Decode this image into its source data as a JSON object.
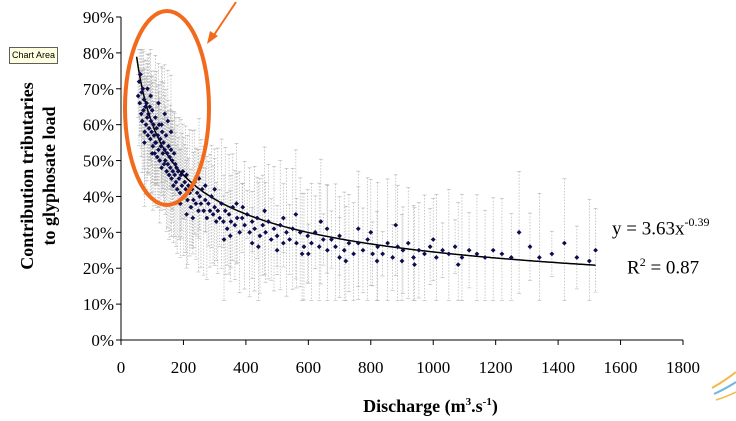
{
  "tooltip": "Chart Area",
  "chart_data": {
    "type": "scatter",
    "xlabel_main": "Discharge (m",
    "xlabel_sup1": "3",
    "xlabel_mid": ".s",
    "xlabel_sup2": "-1",
    "xlabel_end": ")",
    "ylabel_line1": "Contribution tributaries",
    "ylabel_line2": "to glyphosate load",
    "xlim": [
      0,
      1800
    ],
    "ylim": [
      0,
      0.9
    ],
    "xticks": [
      "0",
      "200",
      "400",
      "600",
      "800",
      "1000",
      "1200",
      "1400",
      "1600",
      "1800"
    ],
    "yticks": [
      "0%",
      "10%",
      "20%",
      "30%",
      "40%",
      "50%",
      "60%",
      "70%",
      "80%",
      "90%"
    ],
    "equation_prefix": "y = 3.63x",
    "equation_exponent": "-0.39",
    "r2_prefix": "R",
    "r2_sup": "2",
    "r2_value": " = 0.87",
    "fit": {
      "a": 3.63,
      "b": -0.39,
      "x_range": [
        50,
        1520
      ]
    },
    "error_bar_color": "#b3b3b3",
    "point_color": "#0d0d4d",
    "highlight_color": "#f26b1d",
    "points": [
      [
        55,
        0.68
      ],
      [
        58,
        0.72
      ],
      [
        60,
        0.66
      ],
      [
        62,
        0.74
      ],
      [
        65,
        0.63
      ],
      [
        66,
        0.69
      ],
      [
        68,
        0.61
      ],
      [
        70,
        0.7
      ],
      [
        72,
        0.64
      ],
      [
        74,
        0.67
      ],
      [
        76,
        0.58
      ],
      [
        78,
        0.65
      ],
      [
        80,
        0.6
      ],
      [
        82,
        0.66
      ],
      [
        84,
        0.62
      ],
      [
        86,
        0.57
      ],
      [
        88,
        0.63
      ],
      [
        90,
        0.59
      ],
      [
        92,
        0.65
      ],
      [
        94,
        0.56
      ],
      [
        96,
        0.61
      ],
      [
        98,
        0.58
      ],
      [
        100,
        0.64
      ],
      [
        102,
        0.54
      ],
      [
        104,
        0.6
      ],
      [
        106,
        0.57
      ],
      [
        108,
        0.52
      ],
      [
        110,
        0.62
      ],
      [
        112,
        0.55
      ],
      [
        114,
        0.59
      ],
      [
        116,
        0.51
      ],
      [
        118,
        0.57
      ],
      [
        120,
        0.53
      ],
      [
        122,
        0.6
      ],
      [
        124,
        0.5
      ],
      [
        126,
        0.56
      ],
      [
        128,
        0.54
      ],
      [
        130,
        0.48
      ],
      [
        132,
        0.58
      ],
      [
        134,
        0.52
      ],
      [
        136,
        0.55
      ],
      [
        138,
        0.49
      ],
      [
        140,
        0.53
      ],
      [
        142,
        0.5
      ],
      [
        144,
        0.57
      ],
      [
        146,
        0.47
      ],
      [
        148,
        0.52
      ],
      [
        150,
        0.49
      ],
      [
        152,
        0.54
      ],
      [
        154,
        0.46
      ],
      [
        156,
        0.51
      ],
      [
        158,
        0.48
      ],
      [
        160,
        0.53
      ],
      [
        162,
        0.45
      ],
      [
        164,
        0.5
      ],
      [
        166,
        0.47
      ],
      [
        168,
        0.43
      ],
      [
        170,
        0.52
      ],
      [
        172,
        0.46
      ],
      [
        174,
        0.49
      ],
      [
        176,
        0.44
      ],
      [
        178,
        0.48
      ],
      [
        180,
        0.42
      ],
      [
        183,
        0.47
      ],
      [
        186,
        0.45
      ],
      [
        189,
        0.41
      ],
      [
        192,
        0.46
      ],
      [
        195,
        0.43
      ],
      [
        198,
        0.47
      ],
      [
        201,
        0.4
      ],
      [
        204,
        0.44
      ],
      [
        207,
        0.42
      ],
      [
        210,
        0.46
      ],
      [
        213,
        0.39
      ],
      [
        216,
        0.43
      ],
      [
        220,
        0.41
      ],
      [
        224,
        0.37
      ],
      [
        228,
        0.42
      ],
      [
        232,
        0.39
      ],
      [
        236,
        0.44
      ],
      [
        240,
        0.38
      ],
      [
        244,
        0.41
      ],
      [
        248,
        0.36
      ],
      [
        252,
        0.4
      ],
      [
        256,
        0.38
      ],
      [
        260,
        0.42
      ],
      [
        265,
        0.36
      ],
      [
        270,
        0.39
      ],
      [
        275,
        0.34
      ],
      [
        280,
        0.38
      ],
      [
        285,
        0.36
      ],
      [
        290,
        0.4
      ],
      [
        295,
        0.35
      ],
      [
        300,
        0.37
      ],
      [
        305,
        0.33
      ],
      [
        310,
        0.36
      ],
      [
        316,
        0.34
      ],
      [
        322,
        0.38
      ],
      [
        328,
        0.33
      ],
      [
        334,
        0.36
      ],
      [
        340,
        0.31
      ],
      [
        346,
        0.35
      ],
      [
        352,
        0.33
      ],
      [
        358,
        0.37
      ],
      [
        365,
        0.32
      ],
      [
        372,
        0.34
      ],
      [
        380,
        0.3
      ],
      [
        388,
        0.34
      ],
      [
        396,
        0.32
      ],
      [
        404,
        0.35
      ],
      [
        412,
        0.3
      ],
      [
        420,
        0.33
      ],
      [
        428,
        0.31
      ],
      [
        436,
        0.34
      ],
      [
        445,
        0.29
      ],
      [
        454,
        0.32
      ],
      [
        463,
        0.3
      ],
      [
        472,
        0.33
      ],
      [
        481,
        0.28
      ],
      [
        490,
        0.31
      ],
      [
        500,
        0.29
      ],
      [
        510,
        0.32
      ],
      [
        520,
        0.27
      ],
      [
        530,
        0.3
      ],
      [
        540,
        0.28
      ],
      [
        550,
        0.31
      ],
      [
        562,
        0.27
      ],
      [
        574,
        0.3
      ],
      [
        586,
        0.26
      ],
      [
        598,
        0.29
      ],
      [
        610,
        0.27
      ],
      [
        622,
        0.3
      ],
      [
        635,
        0.26
      ],
      [
        648,
        0.28
      ],
      [
        661,
        0.25
      ],
      [
        674,
        0.28
      ],
      [
        687,
        0.26
      ],
      [
        700,
        0.29
      ],
      [
        715,
        0.25
      ],
      [
        730,
        0.27
      ],
      [
        745,
        0.24
      ],
      [
        760,
        0.27
      ],
      [
        775,
        0.25
      ],
      [
        790,
        0.28
      ],
      [
        806,
        0.24
      ],
      [
        822,
        0.26
      ],
      [
        838,
        0.24
      ],
      [
        854,
        0.27
      ],
      [
        870,
        0.23
      ],
      [
        886,
        0.26
      ],
      [
        903,
        0.25
      ],
      [
        920,
        0.27
      ],
      [
        937,
        0.23
      ],
      [
        954,
        0.25
      ],
      [
        972,
        0.24
      ],
      [
        990,
        0.26
      ],
      [
        1010,
        0.23
      ],
      [
        1030,
        0.25
      ],
      [
        1050,
        0.24
      ],
      [
        1070,
        0.26
      ],
      [
        1092,
        0.23
      ],
      [
        1115,
        0.25
      ],
      [
        1140,
        0.24
      ],
      [
        1166,
        0.23
      ],
      [
        1192,
        0.25
      ],
      [
        1220,
        0.24
      ],
      [
        1250,
        0.23
      ],
      [
        1275,
        0.3
      ],
      [
        1310,
        0.26
      ],
      [
        1340,
        0.23
      ],
      [
        1380,
        0.24
      ],
      [
        1420,
        0.27
      ],
      [
        1460,
        0.23
      ],
      [
        1500,
        0.22
      ],
      [
        1520,
        0.25
      ],
      [
        160,
        0.58
      ],
      [
        150,
        0.61
      ],
      [
        140,
        0.63
      ],
      [
        130,
        0.6
      ],
      [
        120,
        0.66
      ],
      [
        110,
        0.55
      ],
      [
        100,
        0.52
      ],
      [
        95,
        0.68
      ],
      [
        85,
        0.7
      ],
      [
        75,
        0.55
      ],
      [
        230,
        0.34
      ],
      [
        250,
        0.45
      ],
      [
        270,
        0.43
      ],
      [
        210,
        0.35
      ],
      [
        190,
        0.38
      ],
      [
        350,
        0.29
      ],
      [
        370,
        0.38
      ],
      [
        420,
        0.27
      ],
      [
        460,
        0.36
      ],
      [
        500,
        0.25
      ],
      [
        560,
        0.35
      ],
      [
        600,
        0.24
      ],
      [
        640,
        0.33
      ],
      [
        700,
        0.23
      ],
      [
        760,
        0.31
      ],
      [
        820,
        0.22
      ],
      [
        880,
        0.32
      ],
      [
        940,
        0.21
      ],
      [
        1000,
        0.28
      ],
      [
        1080,
        0.21
      ],
      [
        300,
        0.42
      ],
      [
        330,
        0.28
      ],
      [
        390,
        0.37
      ],
      [
        440,
        0.26
      ],
      [
        520,
        0.34
      ],
      [
        580,
        0.24
      ],
      [
        660,
        0.31
      ],
      [
        720,
        0.22
      ],
      [
        800,
        0.3
      ],
      [
        900,
        0.22
      ]
    ]
  }
}
